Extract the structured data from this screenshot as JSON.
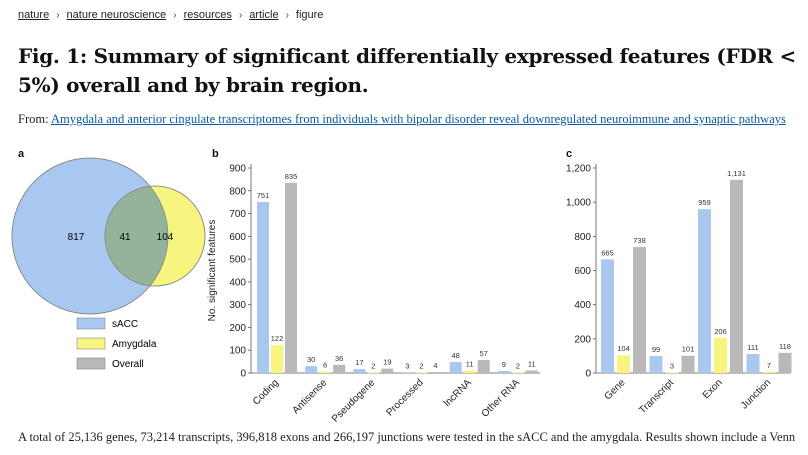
{
  "breadcrumb": {
    "items": [
      "nature",
      "nature neuroscience",
      "resources",
      "article"
    ],
    "current": "figure",
    "separator": "›"
  },
  "title": "Fig. 1: Summary of significant differentially expressed features (FDR < 5%) overall and by brain region.",
  "from": {
    "prefix": "From:",
    "link": "Amygdala and anterior cingulate transcriptomes from individuals with bipolar disorder reveal downregulated neuroimmune and synaptic pathways"
  },
  "panels": {
    "a": "a",
    "b": "b",
    "c": "c"
  },
  "caption": "A total of 25,136 genes, 73,214 transcripts, 396,818 exons and 266,197 junctions were tested in the sACC and the amygdala. Results shown include a Venn",
  "colors": {
    "sACC": "#a9c8ef",
    "Amygdala": "#f7f57f",
    "Overall": "#b9b9b9"
  },
  "chart_data": [
    {
      "type": "venn",
      "sets": [
        {
          "name": "sACC",
          "only": 817
        },
        {
          "name": "Amygdala",
          "only": 104
        }
      ],
      "intersection": 41,
      "legend": [
        "sACC",
        "Amygdala",
        "Overall"
      ],
      "legend_position": "bottom"
    },
    {
      "type": "bar",
      "ylabel": "No. significant features",
      "ylim": [
        0,
        900
      ],
      "yticks": [
        0,
        100,
        200,
        300,
        400,
        500,
        600,
        700,
        800,
        900
      ],
      "categories": [
        "Coding",
        "Antisense",
        "Pseudogene",
        "Processed",
        "lncRNA",
        "Other RNA"
      ],
      "series": [
        {
          "name": "sACC",
          "values": [
            751,
            30,
            17,
            3,
            48,
            9
          ]
        },
        {
          "name": "Amygdala",
          "values": [
            122,
            6,
            2,
            2,
            11,
            2
          ]
        },
        {
          "name": "Overall",
          "values": [
            835,
            36,
            19,
            4,
            57,
            11
          ]
        }
      ]
    },
    {
      "type": "bar",
      "ylim": [
        0,
        1200
      ],
      "yticks": [
        0,
        200,
        400,
        600,
        800,
        1000,
        1200
      ],
      "ytick_labels": [
        "0",
        "200",
        "400",
        "600",
        "800",
        "1,000",
        "1,200"
      ],
      "categories": [
        "Gene",
        "Transcript",
        "Exon",
        "Junction"
      ],
      "series": [
        {
          "name": "sACC",
          "values": [
            665,
            99,
            959,
            111
          ]
        },
        {
          "name": "Amygdala",
          "values": [
            104,
            3,
            206,
            7
          ]
        },
        {
          "name": "Overall",
          "values": [
            738,
            101,
            1131,
            118
          ]
        }
      ],
      "value_labels": [
        [
          "665",
          "104",
          "738"
        ],
        [
          "99",
          "3",
          "101"
        ],
        [
          "959",
          "206",
          "1,131"
        ],
        [
          "111",
          "7",
          "118"
        ]
      ]
    }
  ]
}
